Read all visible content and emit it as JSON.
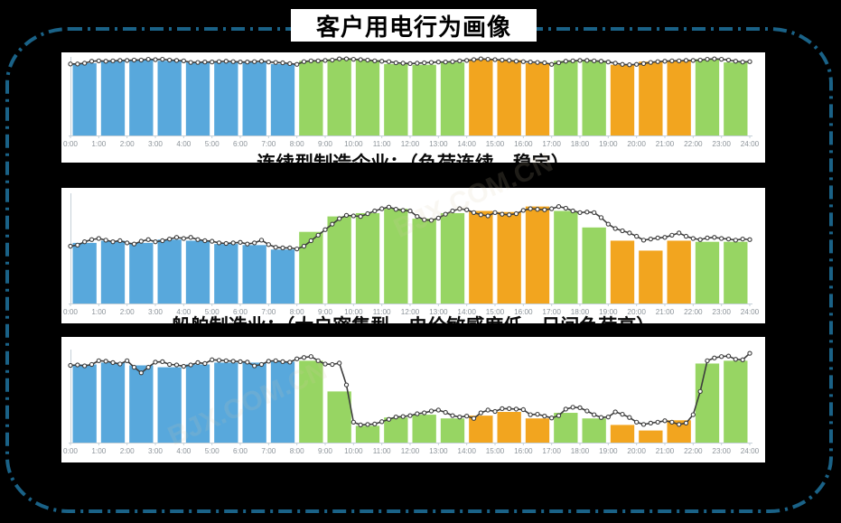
{
  "title": {
    "text": "客户用电行为画像"
  },
  "watermark": {
    "text": "BJX.COM.CN"
  },
  "colors": {
    "background": "#000000",
    "border": "#1A6287",
    "panel": "#ffffff",
    "bar_blue": "#58A8DC",
    "bar_green": "#97D563",
    "bar_orange": "#F2A51F",
    "line": "#3D3D3D",
    "marker_fill": "#ffffff",
    "axis": "#C5D0D8",
    "axis_label": "#8D949A"
  },
  "axis_labels": [
    "0:00",
    "1:00",
    "2:00",
    "3:00",
    "4:00",
    "5:00",
    "6:00",
    "7:00",
    "8:00",
    "9:00",
    "10:00",
    "11:00",
    "12:00",
    "13:00",
    "14:00",
    "15:00",
    "16:00",
    "17:00",
    "18:00",
    "19:00",
    "20:00",
    "21:00",
    "22:00",
    "23:00",
    "24:00"
  ],
  "bar_color_pattern": [
    "blue",
    "blue",
    "blue",
    "blue",
    "blue",
    "blue",
    "blue",
    "blue",
    "green",
    "green",
    "green",
    "green",
    "green",
    "green",
    "orange",
    "orange",
    "orange",
    "green",
    "green",
    "orange",
    "orange",
    "orange",
    "green",
    "green"
  ],
  "chart_data": [
    {
      "type": "bar",
      "title": "",
      "xlabel": "hour of day",
      "ylabel": "load",
      "ylim": [
        0,
        100
      ],
      "categories": [
        "0:00",
        "1:00",
        "2:00",
        "3:00",
        "4:00",
        "5:00",
        "6:00",
        "7:00",
        "8:00",
        "9:00",
        "10:00",
        "11:00",
        "12:00",
        "13:00",
        "14:00",
        "15:00",
        "16:00",
        "17:00",
        "18:00",
        "19:00",
        "20:00",
        "21:00",
        "22:00",
        "23:00"
      ],
      "values": [
        92,
        95,
        96,
        95,
        93,
        93,
        93,
        91,
        95,
        97,
        96,
        91,
        90,
        93,
        97,
        96,
        92,
        95,
        95,
        90,
        94,
        95,
        97,
        93
      ],
      "line_series": {
        "name": "15-min load curve",
        "x_step_minutes": 15,
        "values": [
          91,
          91,
          92,
          94.5,
          95,
          94.5,
          95,
          95.5,
          95.5,
          96,
          96,
          97,
          96.5,
          97,
          96,
          95.5,
          95,
          93,
          93,
          93.5,
          93.5,
          94,
          94.5,
          94,
          93.5,
          93.5,
          94,
          94.5,
          93.5,
          93,
          92.5,
          91.5,
          90.5,
          94,
          95,
          95,
          95.5,
          96,
          97.5,
          97.5,
          97,
          96.5,
          96,
          95,
          94.5,
          94,
          92.5,
          92,
          91.5,
          92,
          92.5,
          93,
          93.5,
          93.5,
          94,
          95,
          95.5,
          96.5,
          97.5,
          97,
          96.5,
          96,
          95.5,
          94.5,
          94,
          93.5,
          93,
          92.5,
          90.5,
          92.5,
          94.5,
          95,
          95.5,
          95.5,
          95,
          94.5,
          93.5,
          92,
          90.5,
          90,
          90.5,
          91.5,
          93,
          94,
          94.5,
          95,
          95,
          95.5,
          95.5,
          96,
          97,
          97.5,
          97,
          96,
          94.5,
          93.5,
          94
        ]
      },
      "caption": "连续型制造企业：（负荷连续、稳定）"
    },
    {
      "type": "bar",
      "title": "",
      "xlabel": "hour of day",
      "ylabel": "load",
      "ylim": [
        0,
        100
      ],
      "categories": [
        "0:00",
        "1:00",
        "2:00",
        "3:00",
        "4:00",
        "5:00",
        "6:00",
        "7:00",
        "8:00",
        "9:00",
        "10:00",
        "11:00",
        "12:00",
        "13:00",
        "14:00",
        "15:00",
        "16:00",
        "17:00",
        "18:00",
        "19:00",
        "20:00",
        "21:00",
        "22:00",
        "23:00"
      ],
      "values": [
        55,
        57,
        55,
        58,
        57,
        54,
        53,
        49,
        65,
        79,
        82,
        86,
        77,
        82,
        84,
        83,
        88,
        84,
        69,
        57,
        48,
        57,
        56,
        56
      ],
      "line_series": {
        "name": "15-min load curve",
        "x_step_minutes": 15,
        "values": [
          52,
          53,
          56,
          58,
          59,
          57.5,
          56,
          57,
          55,
          54,
          56.5,
          58,
          56,
          57,
          58.5,
          60,
          59,
          60,
          58,
          57,
          56.5,
          55,
          54.5,
          55,
          55.5,
          54,
          55,
          57.5,
          53.5,
          51,
          50.5,
          50.5,
          49.5,
          52,
          57,
          62,
          67,
          72,
          77,
          80,
          79.5,
          79,
          81.5,
          84,
          86,
          87.5,
          85.5,
          84.5,
          84,
          79,
          76,
          75.5,
          77.5,
          81,
          84,
          86,
          85,
          82.5,
          80.5,
          79.5,
          82.5,
          81,
          80.5,
          81.5,
          84.5,
          86,
          85.5,
          85,
          86,
          88,
          86.5,
          84,
          82.5,
          83,
          82.5,
          78,
          72,
          68,
          66,
          64,
          61,
          57.5,
          58.5,
          59.5,
          60,
          62,
          64,
          61,
          59,
          58,
          59.5,
          60,
          59,
          58.5,
          57.5,
          58.5,
          58
        ]
      },
      "caption": "船舶制造业：（大户密集型，电价敏感度低，日间负荷高）"
    },
    {
      "type": "bar",
      "title": "",
      "xlabel": "hour of day",
      "ylabel": "load",
      "ylim": [
        0,
        100
      ],
      "categories": [
        "0:00",
        "1:00",
        "2:00",
        "3:00",
        "4:00",
        "5:00",
        "6:00",
        "7:00",
        "8:00",
        "9:00",
        "10:00",
        "11:00",
        "12:00",
        "13:00",
        "14:00",
        "15:00",
        "16:00",
        "17:00",
        "18:00",
        "19:00",
        "20:00",
        "21:00",
        "22:00",
        "23:00"
      ],
      "values": [
        84,
        86,
        83,
        81,
        84,
        86,
        86,
        87,
        88,
        55,
        18,
        27,
        30,
        26,
        29,
        33,
        26,
        32,
        26,
        19,
        13,
        24,
        85,
        88
      ],
      "line_series": {
        "name": "15-min load curve",
        "x_step_minutes": 15,
        "values": [
          83,
          83.5,
          82.5,
          84,
          88,
          87.5,
          86,
          84.5,
          88,
          81,
          75,
          81,
          86.5,
          87,
          84,
          83.5,
          82,
          83.5,
          86,
          85,
          89,
          88.5,
          88,
          87.5,
          87,
          86.5,
          82.5,
          84,
          87.5,
          88,
          87,
          86.5,
          90,
          91.5,
          92.5,
          88,
          84.5,
          84,
          85.5,
          62,
          22,
          19,
          19.5,
          20,
          22.5,
          25,
          27.5,
          28,
          29,
          31,
          32,
          34,
          35,
          32.5,
          29,
          27.5,
          28.5,
          26,
          32,
          35,
          33.5,
          36.5,
          36.5,
          36,
          35.5,
          30,
          30.5,
          28.5,
          26.5,
          29,
          36,
          38,
          37.5,
          34,
          30,
          27,
          27.5,
          33,
          30.5,
          27,
          22,
          19.5,
          21,
          22,
          23.5,
          22,
          19.5,
          21,
          30,
          55,
          88,
          91,
          92.5,
          93,
          89.5,
          89,
          96
        ]
      },
      "caption": ""
    }
  ]
}
